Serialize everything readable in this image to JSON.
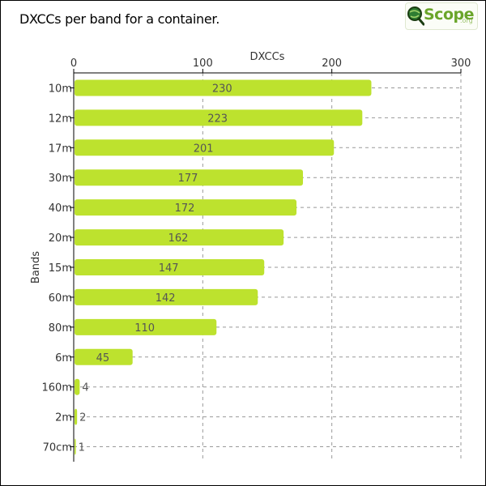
{
  "title": "DXCCs per band for a container.",
  "logo": {
    "main": "Scope",
    "suffix": ".org"
  },
  "colors": {
    "bar": "#bde22e",
    "grid": "#999999",
    "axis": "#000000"
  },
  "chart_data": {
    "type": "bar",
    "orientation": "horizontal",
    "title": "DXCCs per band for a container.",
    "xlabel": "DXCCs",
    "ylabel": "Bands",
    "xlim": [
      0,
      300
    ],
    "xticks": [
      0,
      100,
      200,
      300
    ],
    "x_axis_position": "top",
    "grid": true,
    "categories": [
      "10m",
      "12m",
      "17m",
      "30m",
      "40m",
      "20m",
      "15m",
      "60m",
      "80m",
      "6m",
      "160m",
      "2m",
      "70cm"
    ],
    "values": [
      230,
      223,
      201,
      177,
      172,
      162,
      147,
      142,
      110,
      45,
      4,
      2,
      1
    ]
  }
}
